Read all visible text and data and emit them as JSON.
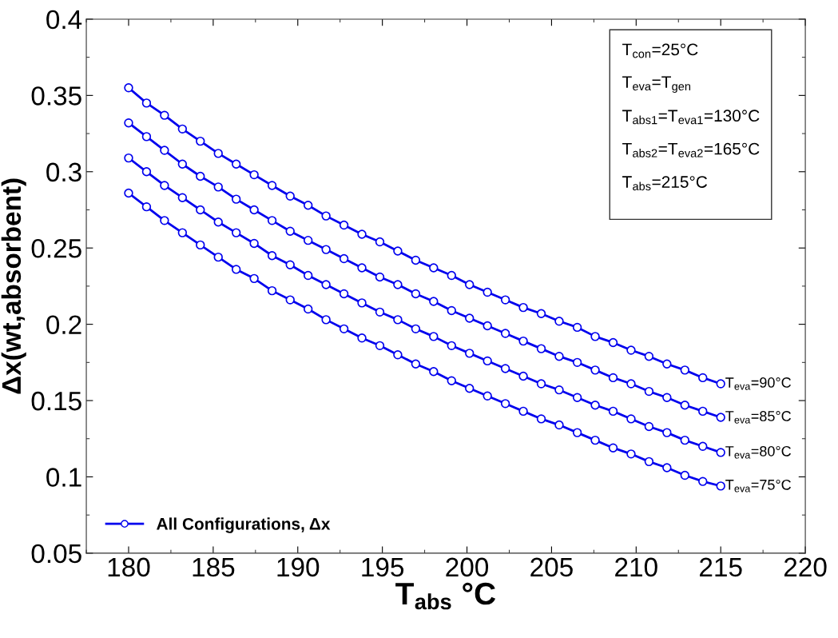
{
  "chart_data": {
    "type": "line",
    "xlabel": "T$_{abs}$ °C",
    "ylabel": "Δx(wt,absorbent)",
    "x": [
      180,
      181.06,
      182.12,
      183.18,
      184.24,
      185.3,
      186.36,
      187.42,
      188.48,
      189.55,
      190.61,
      191.67,
      192.73,
      193.79,
      194.85,
      195.91,
      196.97,
      198.03,
      199.09,
      200.15,
      201.21,
      202.27,
      203.33,
      204.39,
      205.45,
      206.52,
      207.58,
      208.64,
      209.7,
      210.76,
      211.82,
      212.88,
      213.94,
      215
    ],
    "series": [
      {
        "name": "All Configurations, Δx",
        "color": "#0000ee",
        "values": [
          0.355,
          0.345,
          0.337,
          0.328,
          0.32,
          0.312,
          0.305,
          0.298,
          0.291,
          0.284,
          0.278,
          0.271,
          0.265,
          0.259,
          0.254,
          0.248,
          0.242,
          0.237,
          0.232,
          0.226,
          0.221,
          0.216,
          0.211,
          0.207,
          0.202,
          0.198,
          0.192,
          0.188,
          0.183,
          0.179,
          0.174,
          0.17,
          0.165,
          0.161
        ]
      },
      {
        "color": "#0000ee",
        "values": [
          0.332,
          0.323,
          0.314,
          0.305,
          0.297,
          0.29,
          0.282,
          0.275,
          0.268,
          0.261,
          0.255,
          0.249,
          0.243,
          0.237,
          0.231,
          0.226,
          0.22,
          0.215,
          0.209,
          0.204,
          0.199,
          0.194,
          0.189,
          0.184,
          0.179,
          0.175,
          0.17,
          0.165,
          0.161,
          0.156,
          0.152,
          0.147,
          0.143,
          0.139
        ]
      },
      {
        "color": "#0000ee",
        "values": [
          0.309,
          0.3,
          0.291,
          0.283,
          0.275,
          0.267,
          0.26,
          0.253,
          0.245,
          0.239,
          0.232,
          0.226,
          0.22,
          0.214,
          0.208,
          0.203,
          0.197,
          0.192,
          0.186,
          0.181,
          0.176,
          0.171,
          0.166,
          0.161,
          0.157,
          0.152,
          0.147,
          0.143,
          0.138,
          0.133,
          0.129,
          0.124,
          0.12,
          0.116
        ]
      },
      {
        "color": "#0000ee",
        "values": [
          0.286,
          0.277,
          0.268,
          0.26,
          0.252,
          0.244,
          0.236,
          0.23,
          0.222,
          0.216,
          0.21,
          0.203,
          0.197,
          0.191,
          0.186,
          0.18,
          0.174,
          0.169,
          0.163,
          0.158,
          0.153,
          0.148,
          0.143,
          0.138,
          0.134,
          0.129,
          0.124,
          0.119,
          0.115,
          0.11,
          0.106,
          0.101,
          0.097,
          0.094
        ]
      }
    ],
    "xlim": [
      177.5,
      220
    ],
    "xticks": [
      180,
      185,
      190,
      195,
      200,
      205,
      210,
      215,
      220
    ],
    "ylim": [
      0.05,
      0.4
    ],
    "yticks": [
      0.05,
      0.1,
      0.15,
      0.2,
      0.25,
      0.3,
      0.35,
      0.4
    ],
    "marker": "circle",
    "line_style": "solid",
    "grid": false,
    "legend": "bottom left",
    "annotations": [
      "T$_{con}$=25°C",
      "T$_{eva}$=T$_{gen}$",
      "T$_{abs1}$=T$_{eva1}$=130°C",
      "T$_{abs2}$=T$_{eva2}$=165°C",
      "T$_{abs}$=215°C",
      "T$_{eva}$=90°C",
      "T$_{eva}$=85°C",
      "T$_{eva}$=80°C",
      "T$_{eva}$=75°C"
    ]
  }
}
